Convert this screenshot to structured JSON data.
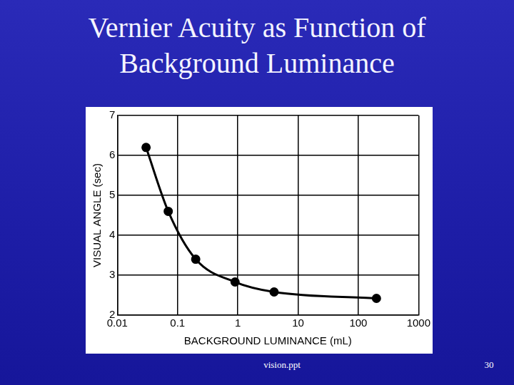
{
  "chart_data": {
    "type": "line",
    "title": "Vernier Acuity as Function of Background Luminance",
    "x_label": "BACKGROUND LUMINANCE (mL)",
    "y_label": "VISUAL ANGLE (sec)",
    "x": [
      0.03,
      0.07,
      0.2,
      0.9,
      4,
      200
    ],
    "values": [
      6.2,
      4.6,
      3.4,
      2.83,
      2.58,
      2.42
    ],
    "color": "#000000",
    "marker": "circle",
    "line_style": "solid",
    "log": "x",
    "xlim": [
      0.01,
      1000
    ],
    "xticks": [
      0.01,
      0.1,
      1,
      10,
      100,
      1000
    ],
    "ylim": [
      2,
      7
    ],
    "yticks": [
      2,
      3,
      4,
      5,
      6,
      7
    ],
    "grid": true
  },
  "slide": {
    "footer": "vision.ppt",
    "page_number": 30
  }
}
